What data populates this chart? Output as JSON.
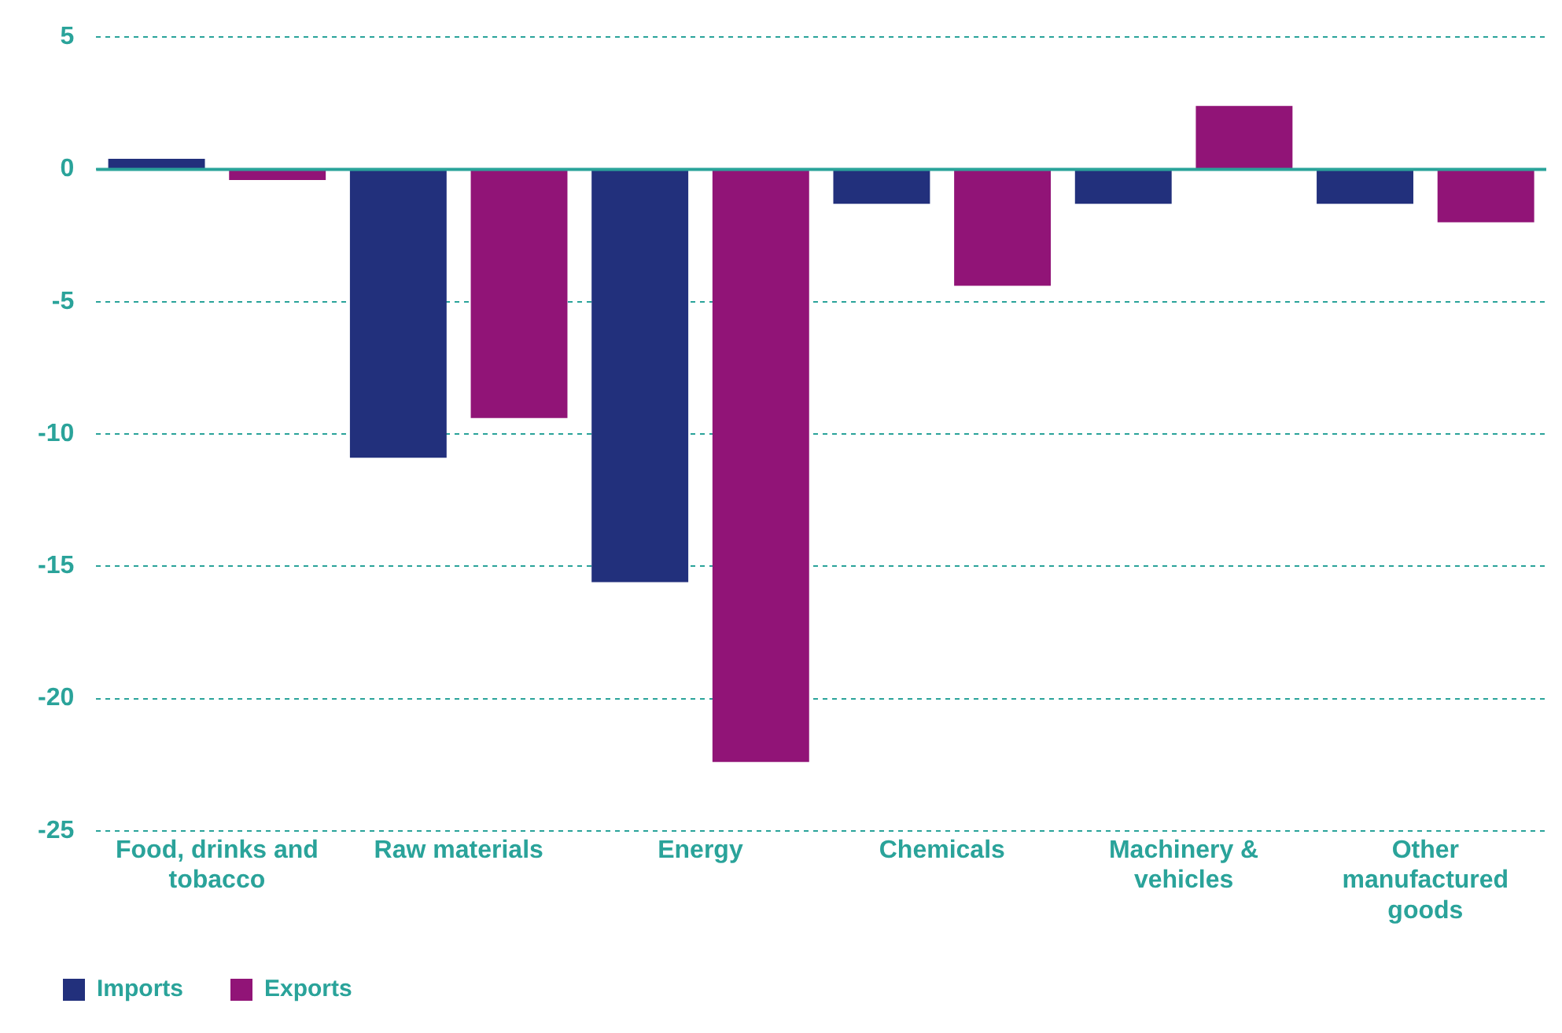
{
  "chart_data": {
    "type": "bar",
    "categories": [
      "Food, drinks and tobacco",
      "Raw materials",
      "Energy",
      "Chemicals",
      "Machinery & vehicles",
      "Other manufactured goods"
    ],
    "series": [
      {
        "name": "Imports",
        "color": "#22307c",
        "values": [
          0.4,
          -10.9,
          -15.6,
          -1.3,
          -1.3,
          -1.3
        ]
      },
      {
        "name": "Exports",
        "color": "#911477",
        "values": [
          -0.4,
          -9.4,
          -22.4,
          -4.4,
          2.4,
          -2.0
        ]
      }
    ],
    "ylim": [
      -25,
      5
    ],
    "yticks": [
      -25,
      -20,
      -15,
      -10,
      -5,
      0,
      5
    ],
    "ref_lines": [
      {
        "axis": "y",
        "value": 0,
        "color": "#2aa39a",
        "line_style": "solid"
      }
    ],
    "grid": "y",
    "legend": "bottom left"
  }
}
